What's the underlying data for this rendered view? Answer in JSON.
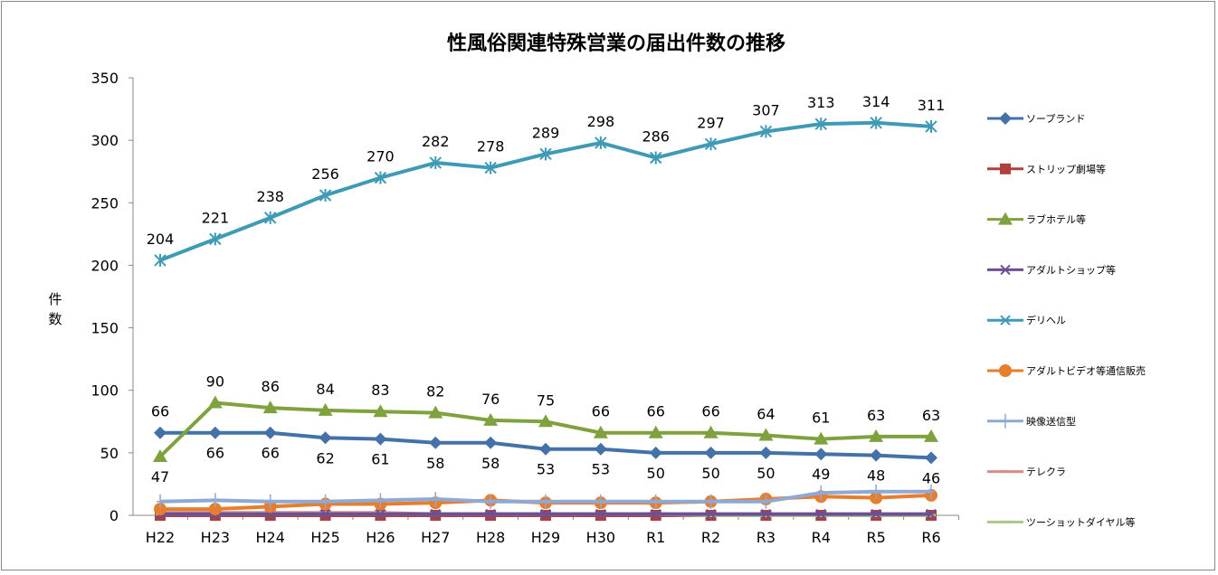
{
  "chart_data": {
    "type": "line",
    "title": "性風俗関連特殊営業の届出件数の推移",
    "ylabel": "件数",
    "xlabel": "",
    "ylim": [
      0,
      350
    ],
    "yticks": [
      0,
      50,
      100,
      150,
      200,
      250,
      300,
      350
    ],
    "grid": false,
    "legend": "right",
    "categories": [
      "H22",
      "H23",
      "H24",
      "H25",
      "H26",
      "H27",
      "H28",
      "H29",
      "H30",
      "R1",
      "R2",
      "R3",
      "R4",
      "R5",
      "R6"
    ],
    "series": [
      {
        "name": "ソープランド",
        "color": "#4472a8",
        "marker": "diamond",
        "labels": true,
        "values": [
          66,
          66,
          66,
          62,
          61,
          58,
          58,
          53,
          53,
          50,
          50,
          50,
          49,
          48,
          46
        ]
      },
      {
        "name": "ストリップ劇場等",
        "color": "#b0403d",
        "marker": "square",
        "labels": false,
        "values": [
          0,
          0,
          0,
          0,
          0,
          0,
          0,
          0,
          0,
          0,
          0,
          0,
          0,
          0,
          0
        ]
      },
      {
        "name": "ラブホテル等",
        "color": "#7fa23f",
        "marker": "triangle",
        "labels": true,
        "values": [
          47,
          90,
          86,
          84,
          83,
          82,
          76,
          75,
          66,
          66,
          66,
          64,
          61,
          63,
          63
        ]
      },
      {
        "name": "アダルトショップ等",
        "color": "#6c4f94",
        "marker": "x",
        "labels": false,
        "values": [
          1,
          1,
          1,
          1,
          1,
          1,
          1,
          1,
          1,
          1,
          1,
          1,
          1,
          1,
          1
        ]
      },
      {
        "name": "デリヘル",
        "color": "#3f9ab5",
        "marker": "star",
        "labels": true,
        "values": [
          204,
          221,
          238,
          256,
          270,
          282,
          278,
          289,
          298,
          286,
          297,
          307,
          313,
          314,
          311
        ]
      },
      {
        "name": "アダルトビデオ等通信販売",
        "color": "#e67e2e",
        "marker": "circle",
        "labels": false,
        "values": [
          5,
          5,
          7,
          9,
          9,
          10,
          12,
          10,
          10,
          10,
          11,
          13,
          15,
          14,
          16
        ]
      },
      {
        "name": "映像送信型",
        "color": "#8fa9d6",
        "marker": "plus",
        "labels": false,
        "values": [
          11,
          12,
          11,
          11,
          12,
          13,
          11,
          11,
          11,
          11,
          11,
          11,
          18,
          19,
          19
        ]
      },
      {
        "name": "テレクラ",
        "color": "#d98b8b",
        "marker": "dash",
        "labels": false,
        "values": [
          2,
          2,
          2,
          2,
          2,
          1,
          1,
          1,
          1,
          1,
          0,
          0,
          0,
          0,
          0
        ]
      },
      {
        "name": "ツーショットダイヤル等",
        "color": "#a9c98a",
        "marker": "dash",
        "labels": false,
        "values": [
          1,
          1,
          1,
          1,
          1,
          1,
          1,
          1,
          1,
          1,
          0,
          0,
          0,
          0,
          0
        ]
      }
    ]
  }
}
